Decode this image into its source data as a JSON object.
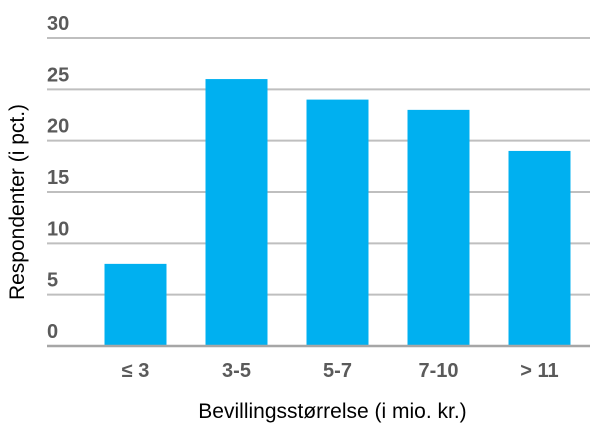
{
  "chart_data": {
    "type": "bar",
    "categories": [
      "≤ 3",
      "3-5",
      "5-7",
      "7-10",
      "> 11"
    ],
    "values": [
      8,
      26,
      24,
      23,
      19
    ],
    "xlabel": "Bevillingsstørrelse (i mio. kr.)",
    "ylabel": "Respondenter (i pct.)",
    "ylim": [
      0,
      30
    ],
    "yticks": [
      0,
      5,
      10,
      15,
      20,
      25,
      30
    ],
    "grid": true,
    "legend": "none",
    "bar_color": "#00b0f0"
  }
}
